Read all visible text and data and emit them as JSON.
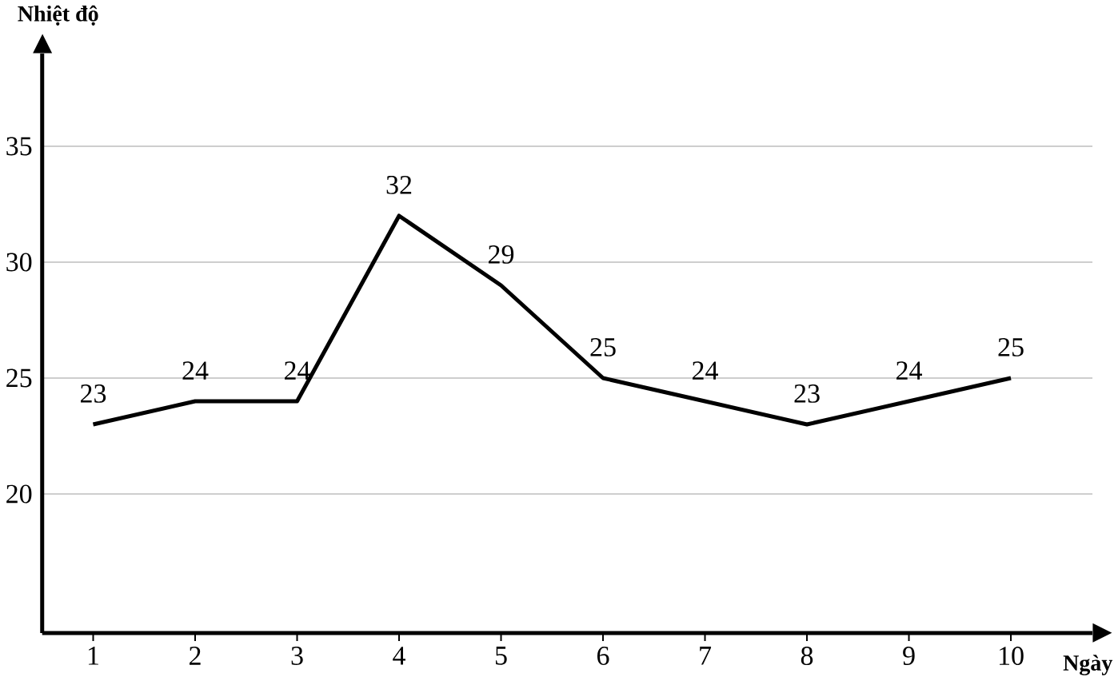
{
  "chart_data": {
    "type": "line",
    "xlabel": "Ngày",
    "ylabel": "Nhiệt độ",
    "x": [
      1,
      2,
      3,
      4,
      5,
      6,
      7,
      8,
      9,
      10
    ],
    "values": [
      23,
      24,
      24,
      32,
      29,
      25,
      24,
      23,
      24,
      25
    ],
    "color": "#000000",
    "xlim": [
      0.5,
      10.8
    ],
    "xticks": [
      1,
      2,
      3,
      4,
      5,
      6,
      7,
      8,
      9,
      10
    ],
    "ylim": [
      14,
      39
    ],
    "yticks": [
      20,
      25,
      30,
      35
    ],
    "grid": "y",
    "data_labels": true,
    "marker": "none",
    "line_style": "solid"
  }
}
